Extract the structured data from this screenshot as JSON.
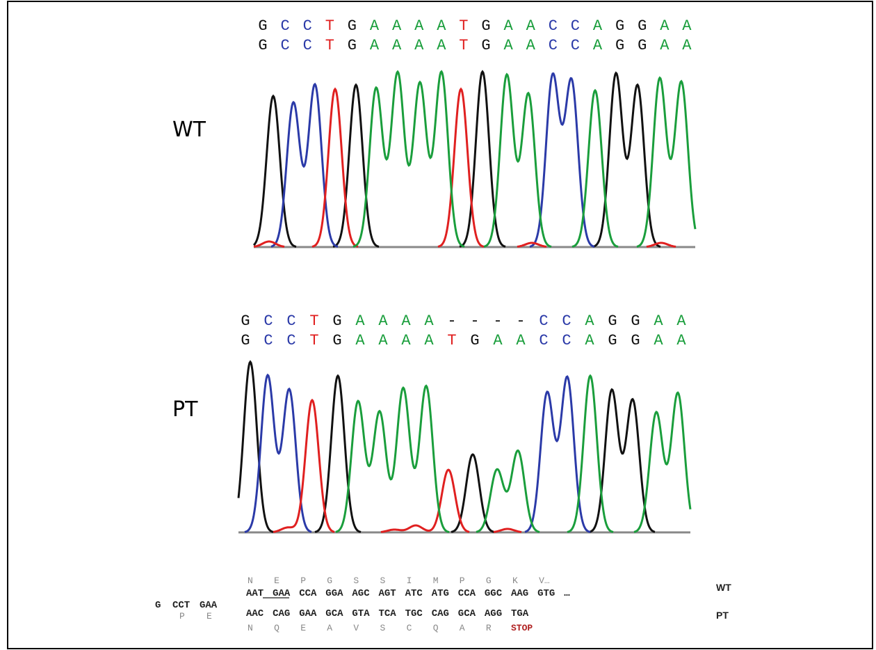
{
  "panels": [
    {
      "label": "WT",
      "sequence_top": [
        "G",
        "C",
        "C",
        "T",
        "G",
        "A",
        "A",
        "A",
        "A",
        "T",
        "G",
        "A",
        "A",
        "C",
        "C",
        "A",
        "G",
        "G",
        "A",
        "A"
      ],
      "sequence_bottom": [
        "G",
        "C",
        "C",
        "T",
        "G",
        "A",
        "A",
        "A",
        "A",
        "T",
        "G",
        "A",
        "A",
        "C",
        "C",
        "A",
        "G",
        "G",
        "A",
        "A"
      ]
    },
    {
      "label": "PT",
      "sequence_top": [
        "G",
        "C",
        "C",
        "T",
        "G",
        "A",
        "A",
        "A",
        "A",
        "-",
        "-",
        "-",
        "-",
        "C",
        "C",
        "A",
        "G",
        "G",
        "A",
        "A"
      ],
      "sequence_bottom": [
        "G",
        "C",
        "C",
        "T",
        "G",
        "A",
        "A",
        "A",
        "A",
        "T",
        "G",
        "A",
        "A",
        "C",
        "C",
        "A",
        "G",
        "G",
        "A",
        "A"
      ]
    }
  ],
  "alignment": {
    "prefix": [
      "G",
      "CCT",
      "GAA"
    ],
    "prefix_aa": [
      "P",
      "E"
    ],
    "wt": {
      "label": "WT",
      "amino_acids": [
        "N",
        "E",
        "P",
        "G",
        "S",
        "S",
        "I",
        "M",
        "P",
        "G",
        "K",
        "V…"
      ],
      "codons": [
        "AAT",
        "GAA",
        "CCA",
        "GGA",
        "AGC",
        "AGT",
        "ATC",
        "ATG",
        "CCA",
        "GGC",
        "AAG",
        "GTG",
        "…"
      ]
    },
    "pt": {
      "label": "PT",
      "codons": [
        "AAC",
        "CAG",
        "GAA",
        "GCA",
        "GTA",
        "TCA",
        "TGC",
        "CAG",
        "GCA",
        "AGG",
        "TGA"
      ],
      "amino_acids": [
        "N",
        "Q",
        "E",
        "A",
        "V",
        "S",
        "C",
        "Q",
        "A",
        "R",
        "STOP"
      ]
    }
  }
}
